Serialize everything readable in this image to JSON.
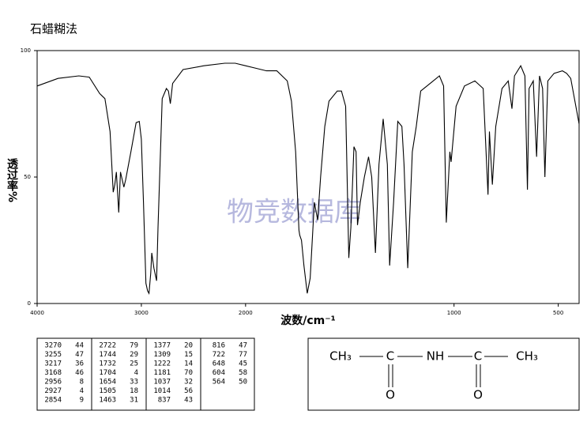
{
  "chart_data": {
    "type": "line",
    "title": "石蜡糊法",
    "xlabel": "波数/cm⁻¹",
    "ylabel": "透过率%",
    "watermark": "物竞数据库",
    "xlim": [
      4000,
      400
    ],
    "xticks": [
      4000,
      3000,
      2000,
      1000,
      500
    ],
    "xscale_break": 2000,
    "ylim": [
      0,
      100
    ],
    "yticks": [
      0,
      50,
      100
    ],
    "series": [
      {
        "color": "#000000",
        "x": [
          4000,
          3800,
          3600,
          3500,
          3400,
          3350,
          3300,
          3270,
          3255,
          3240,
          3217,
          3200,
          3168,
          3150,
          3100,
          3050,
          3020,
          3000,
          2980,
          2956,
          2940,
          2927,
          2910,
          2900,
          2880,
          2854,
          2840,
          2800,
          2760,
          2740,
          2722,
          2700,
          2600,
          2400,
          2200,
          2100,
          2000,
          1950,
          1900,
          1850,
          1800,
          1780,
          1760,
          1744,
          1740,
          1732,
          1720,
          1704,
          1690,
          1670,
          1654,
          1640,
          1620,
          1600,
          1560,
          1540,
          1520,
          1505,
          1495,
          1480,
          1470,
          1463,
          1450,
          1430,
          1410,
          1395,
          1377,
          1360,
          1340,
          1320,
          1309,
          1290,
          1270,
          1250,
          1240,
          1222,
          1200,
          1181,
          1160,
          1100,
          1070,
          1050,
          1037,
          1020,
          1014,
          990,
          950,
          900,
          860,
          837,
          830,
          816,
          800,
          770,
          740,
          722,
          710,
          680,
          660,
          648,
          640,
          620,
          604,
          590,
          575,
          564,
          550,
          520,
          480,
          460,
          440,
          420,
          400
        ],
        "values": [
          86,
          89,
          90,
          89.5,
          83,
          81,
          68,
          44,
          47,
          52,
          36,
          52,
          46,
          49,
          60,
          71.5,
          72,
          65,
          40,
          8,
          5,
          4,
          12,
          20,
          14,
          9,
          30,
          81,
          85,
          84,
          79,
          87,
          92.5,
          94,
          95,
          95,
          94,
          93,
          92,
          92,
          88,
          80,
          60,
          29,
          27,
          25,
          15,
          4,
          10,
          40,
          33,
          50,
          70,
          80,
          84,
          84,
          78,
          18,
          30,
          62,
          60,
          31,
          40,
          50,
          58,
          50,
          20,
          55,
          73,
          55,
          15,
          40,
          72,
          70,
          55,
          14,
          60,
          70,
          84,
          88,
          90,
          86,
          32,
          60,
          56,
          78,
          86,
          88,
          85,
          43,
          68,
          47,
          70,
          85,
          88,
          77,
          90,
          94,
          90,
          45,
          85,
          88,
          58,
          90,
          85,
          50,
          88,
          91,
          92,
          91,
          89,
          80,
          71
        ]
      }
    ]
  },
  "peak_table": [
    [
      [
        "3270",
        "44"
      ],
      [
        "3255",
        "47"
      ],
      [
        "3217",
        "36"
      ],
      [
        "3168",
        "46"
      ],
      [
        "2956",
        "8"
      ],
      [
        "2927",
        "4"
      ],
      [
        "2854",
        "9"
      ]
    ],
    [
      [
        "2722",
        "79"
      ],
      [
        "1744",
        "29"
      ],
      [
        "1732",
        "25"
      ],
      [
        "1704",
        "4"
      ],
      [
        "1654",
        "33"
      ],
      [
        "1505",
        "18"
      ],
      [
        "1463",
        "31"
      ]
    ],
    [
      [
        "1377",
        "20"
      ],
      [
        "1309",
        "15"
      ],
      [
        "1222",
        "14"
      ],
      [
        "1181",
        "70"
      ],
      [
        "1037",
        "32"
      ],
      [
        "1014",
        "56"
      ],
      [
        "837",
        "43"
      ]
    ],
    [
      [
        "816",
        "47"
      ],
      [
        "722",
        "77"
      ],
      [
        "648",
        "45"
      ],
      [
        "604",
        "58"
      ],
      [
        "564",
        "50"
      ]
    ]
  ],
  "structure": {
    "groups": [
      "CH₃",
      "C",
      "NH",
      "C",
      "CH₃"
    ],
    "oxygens": [
      "O",
      "O"
    ]
  }
}
